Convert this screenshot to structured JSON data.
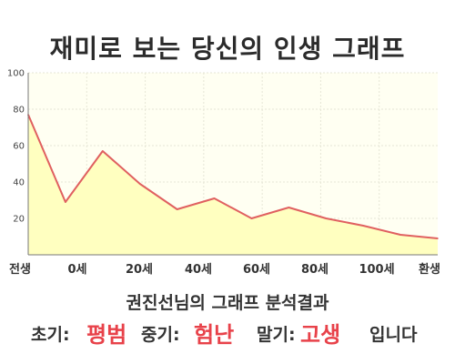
{
  "title": "재미로 보는 당신의 인생 그래프",
  "chart_data": {
    "type": "area",
    "x_labels": [
      "전생",
      "0세",
      "20세",
      "40세",
      "60세",
      "80세",
      "100세",
      "환생"
    ],
    "ylim": [
      0,
      100
    ],
    "y_ticks": [
      "20",
      "40",
      "60",
      "80",
      "100"
    ],
    "values": [
      77,
      29,
      57,
      39,
      25,
      31,
      20,
      26,
      20,
      16,
      11,
      9
    ],
    "colors": {
      "line": "#e06060",
      "fill": "#ffffc0",
      "plot_bg": "#fffff2",
      "grid": "#e6e6d6"
    },
    "grid": true
  },
  "summary": {
    "title": "권진선님의 그래프 분석결과",
    "early_label": "초기:",
    "early_value": "평범",
    "mid_label": "중기:",
    "mid_value": "험난",
    "late_label": "말기:",
    "late_value": "고생",
    "ending": "입니다"
  }
}
